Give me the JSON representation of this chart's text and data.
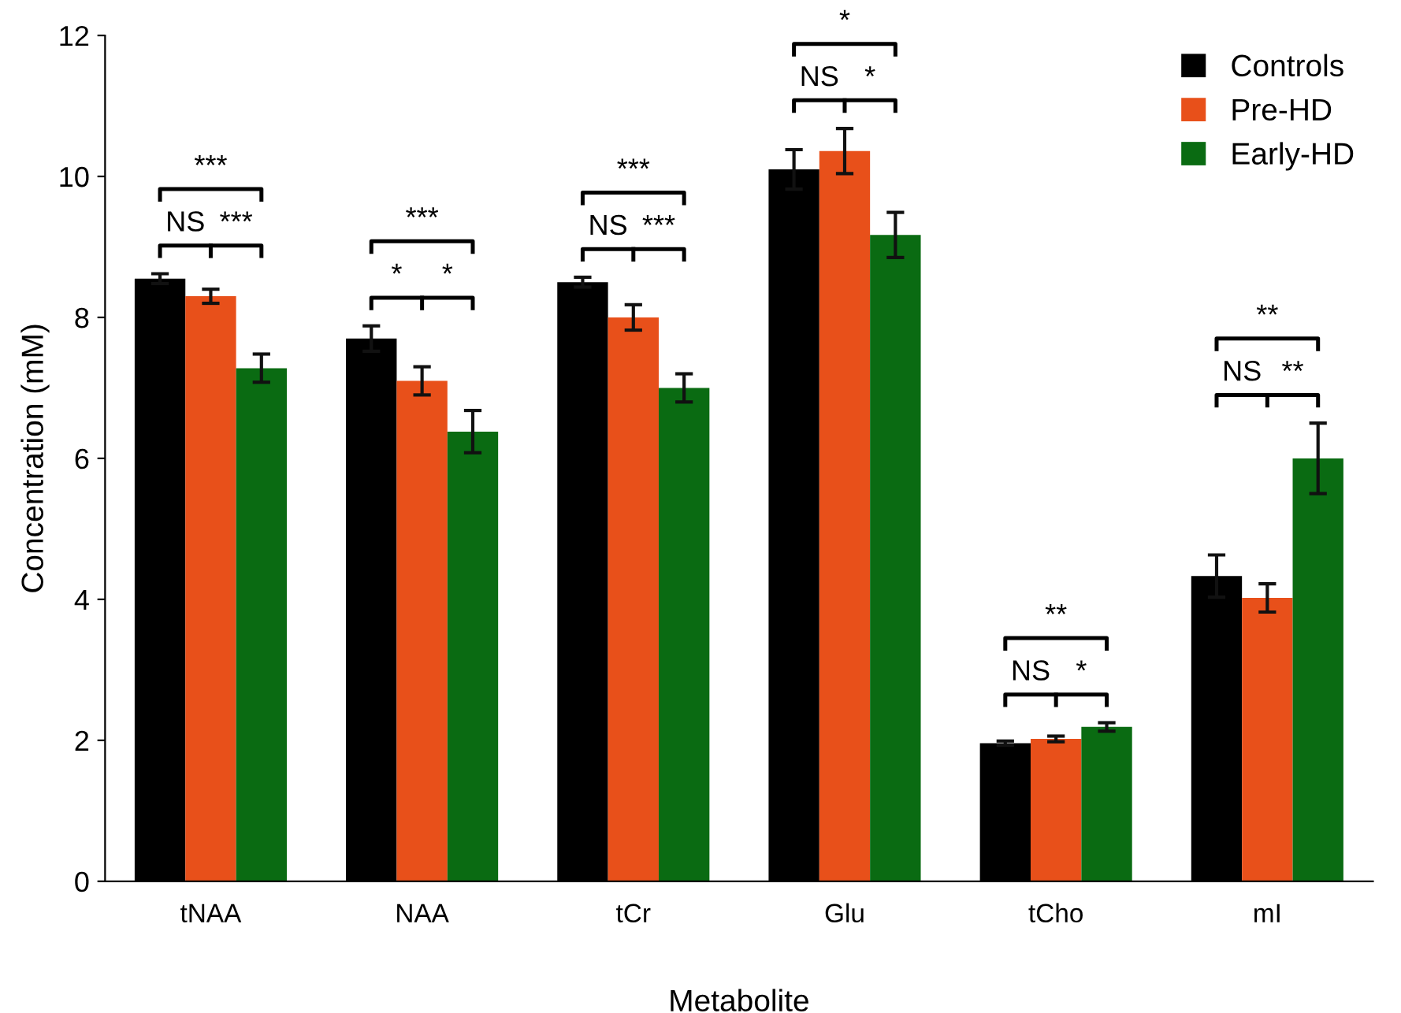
{
  "chart_data": {
    "type": "bar",
    "xlabel": "Metabolite",
    "ylabel": "Concentration (mM)",
    "categories": [
      "tNAA",
      "NAA",
      "tCr",
      "Glu",
      "tCho",
      "mI"
    ],
    "series": [
      {
        "name": "Controls",
        "color": "#000000",
        "values": [
          8.55,
          7.7,
          8.5,
          10.1,
          1.96,
          4.33
        ],
        "errors": [
          0.07,
          0.18,
          0.07,
          0.28,
          0.03,
          0.3
        ]
      },
      {
        "name": "Pre-HD",
        "color": "#e8501a",
        "values": [
          8.3,
          7.1,
          8.0,
          10.36,
          2.02,
          4.02
        ],
        "errors": [
          0.1,
          0.2,
          0.18,
          0.32,
          0.04,
          0.2
        ]
      },
      {
        "name": "Early-HD",
        "color": "#0a6b12",
        "values": [
          7.28,
          6.38,
          7.0,
          9.17,
          2.19,
          6.0
        ],
        "errors": [
          0.2,
          0.3,
          0.2,
          0.32,
          0.06,
          0.5
        ]
      }
    ],
    "ylim": [
      0,
      12
    ],
    "yticks": [
      0,
      2,
      4,
      6,
      8,
      10,
      12
    ],
    "grid": false,
    "legend": "top right",
    "annotations": [
      "***",
      "NS",
      "***",
      "***",
      "*",
      "*",
      "***",
      "NS",
      "***",
      "*",
      "NS",
      "*",
      "**",
      "NS",
      "*",
      "**",
      "NS",
      "**"
    ]
  }
}
